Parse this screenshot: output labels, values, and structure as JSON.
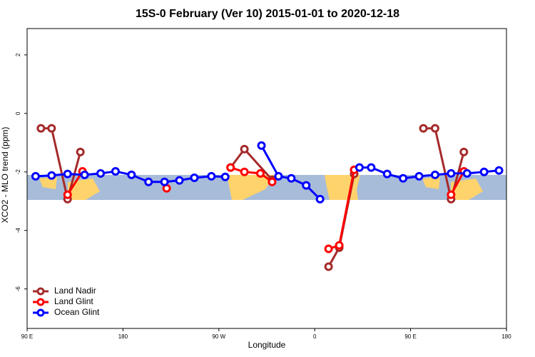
{
  "chart_data": {
    "type": "line",
    "title": "15S-0 February (Ver 10)   2015-01-01 to 2020-12-18",
    "x_label": "Longitude",
    "y_label": "XCO2 - MLO trend (ppm)",
    "xlim": [
      90,
      540
    ],
    "xticks": [
      {
        "value": 90,
        "label": "90 E"
      },
      180,
      {
        "value": 270,
        "label": "90 W"
      },
      {
        "value": 360,
        "label": "0"
      },
      {
        "value": 450,
        "label": "90 E"
      },
      {
        "value": 540,
        "label": "180"
      }
    ],
    "ylim": [
      -7.35,
      2.9
    ],
    "yticks": [
      2,
      0,
      -2,
      -4,
      -6
    ],
    "legend": "bottom-left",
    "series": [
      {
        "name": "Land Nadir",
        "color": "#a52a2a",
        "x": [
          103,
          113,
          128,
          140,
          null,
          281,
          294,
          320,
          null,
          373,
          383,
          397,
          null,
          462,
          473,
          488,
          500
        ],
        "values": [
          -0.51,
          -0.51,
          -2.93,
          -1.32,
          null,
          -1.85,
          -1.22,
          -2.27,
          null,
          -5.24,
          -4.59,
          -2.07,
          null,
          -0.51,
          -0.51,
          -2.93,
          -1.32
        ]
      },
      {
        "name": "Land Glint",
        "color": "#ff0000",
        "x": [
          128,
          142,
          null,
          221,
          null,
          281,
          294,
          309,
          320,
          null,
          373,
          383,
          397,
          null,
          488,
          500
        ],
        "values": [
          -2.78,
          -1.98,
          null,
          -2.56,
          null,
          -1.85,
          -2.0,
          -2.05,
          -2.34,
          null,
          -4.63,
          -4.51,
          -1.93,
          null,
          -2.78,
          -1.98
        ]
      },
      {
        "name": "Ocean Glint",
        "color": "#0000ff",
        "x": [
          98,
          113,
          128,
          144,
          159,
          173,
          188,
          204,
          219,
          233,
          247,
          263,
          276,
          null,
          310,
          326,
          338,
          352,
          365,
          null,
          402,
          413,
          428,
          443,
          458,
          473,
          488,
          503,
          519,
          533
        ],
        "values": [
          -2.15,
          -2.12,
          -2.07,
          -2.1,
          -2.05,
          -1.98,
          -2.1,
          -2.34,
          -2.34,
          -2.29,
          -2.2,
          -2.15,
          -2.17,
          null,
          -1.1,
          -2.15,
          -2.22,
          -2.46,
          -2.93,
          null,
          -1.85,
          -1.85,
          -2.07,
          -2.22,
          -2.15,
          -2.1,
          -2.05,
          -2.05,
          -2.0,
          -1.95
        ]
      }
    ]
  }
}
